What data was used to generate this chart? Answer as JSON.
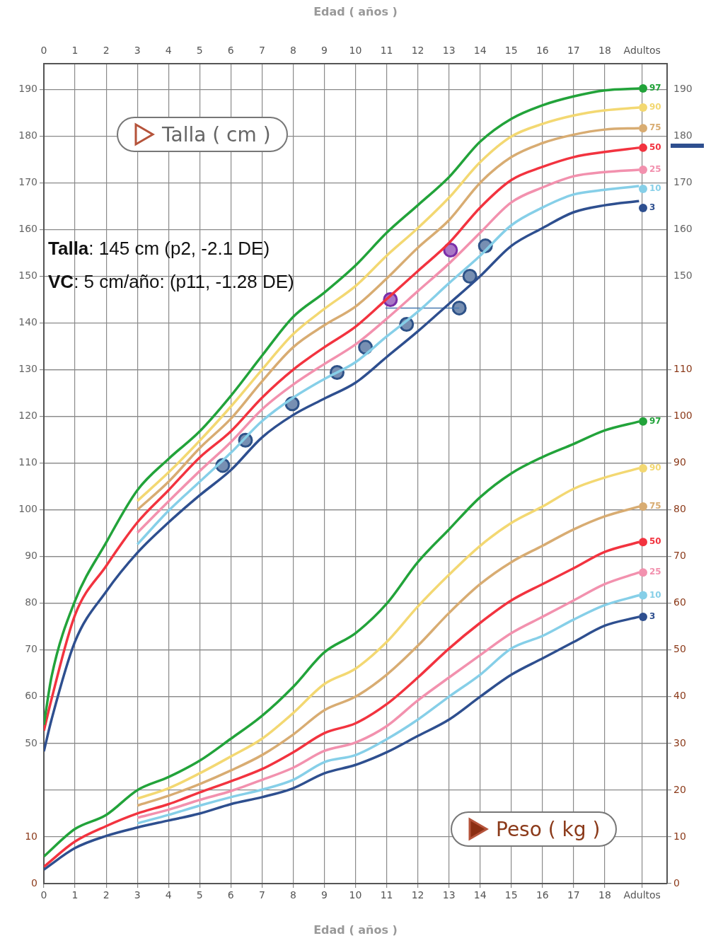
{
  "chart_data": {
    "type": "line",
    "xlabel": "Edad ( años )",
    "x2label": "Edad ( años )",
    "ylabel": "Talla ( cm )",
    "y2label": "Peso ( kg )",
    "annotations": [
      "Talla: 145 cm (p2, -2.1 DE)",
      "VC: 5 cm/año: (p11, -1.28 DE)",
      "190",
      "180",
      "170",
      "160",
      "150"
    ],
    "xlim": [
      0,
      20
    ],
    "xticks": [
      0,
      1,
      2,
      3,
      4,
      5,
      6,
      7,
      8,
      9,
      10,
      11,
      12,
      13,
      14,
      15,
      16,
      17,
      18,
      {
        "value": 19.2,
        "label": "Adultos"
      }
    ],
    "x2lim": [
      0,
      20
    ],
    "x2ticks": [
      0,
      1,
      2,
      3,
      4,
      5,
      6,
      7,
      8,
      9,
      10,
      11,
      12,
      13,
      14,
      15,
      16,
      17,
      18,
      {
        "value": 19.2,
        "label": "Adultos"
      }
    ],
    "ylim": [
      20,
      195.5
    ],
    "yticks": [
      50,
      60,
      70,
      80,
      90,
      100,
      110,
      120,
      130,
      140,
      150,
      160,
      170,
      180,
      190
    ],
    "y2lim": [
      0,
      175.5
    ],
    "y2ticks": [
      0,
      10,
      20,
      30,
      40,
      50,
      60,
      70,
      80,
      90,
      100,
      110
    ],
    "y3lim": [
      0,
      175.5
    ],
    "y3ticks": [
      0,
      10
    ],
    "grid": true,
    "legend": "right",
    "marker": "none",
    "line_style": "solid",
    "series": [
      {
        "name": "97",
        "color": "#22a33a",
        "x": [
          0,
          0.25,
          1,
          2,
          3,
          4,
          5,
          6,
          7,
          8,
          9,
          10,
          11,
          12,
          13,
          14,
          15,
          16,
          17,
          18,
          19.1
        ],
        "values": [
          54,
          64.4,
          80.5,
          93,
          104.2,
          110.9,
          116.8,
          124.4,
          133,
          141.3,
          146.5,
          152.3,
          159.3,
          165.2,
          171.2,
          178.8,
          183.7,
          186.6,
          188.5,
          189.8,
          190.2
        ]
      },
      {
        "name": "90",
        "color": "#f3d872",
        "x": [
          3,
          4,
          5,
          6,
          7,
          8,
          9,
          10,
          11,
          12,
          13,
          14,
          15,
          16,
          17,
          18,
          19.1
        ],
        "values": [
          101.9,
          108,
          114.8,
          122.1,
          130,
          137.6,
          143,
          147.9,
          154.4,
          160.3,
          166.8,
          174.4,
          179.9,
          182.6,
          184.4,
          185.5,
          186.1
        ]
      },
      {
        "name": "75",
        "color": "#d8ac72",
        "x": [
          3,
          4,
          5,
          6,
          7,
          8,
          9,
          10,
          11,
          12,
          13,
          14,
          15,
          16,
          17,
          18,
          19.1
        ],
        "values": [
          100,
          106,
          113.2,
          119.5,
          127.5,
          134.8,
          139.5,
          143.5,
          149.5,
          156.1,
          162,
          170,
          175.5,
          178.5,
          180.3,
          181.4,
          181.7
        ]
      },
      {
        "name": "50",
        "color": "#f2333f",
        "x": [
          0,
          0.25,
          1,
          2,
          3,
          4,
          5,
          6,
          7,
          8,
          9,
          10,
          11,
          12,
          13,
          14,
          15,
          16,
          17,
          18,
          19.1
        ],
        "values": [
          52.7,
          59.6,
          77.5,
          88,
          97.3,
          104.2,
          111.2,
          116.8,
          124,
          130,
          134.8,
          139.2,
          145.1,
          151.1,
          157.1,
          164.7,
          170.6,
          173.4,
          175.5,
          176.6,
          177.5
        ]
      },
      {
        "name": "25",
        "color": "#f291ae",
        "x": [
          3,
          4,
          5,
          6,
          7,
          8,
          9,
          10,
          11,
          12,
          13,
          14,
          15,
          16,
          17,
          18,
          19.1
        ],
        "values": [
          95.1,
          101.8,
          108.3,
          114.5,
          121.5,
          126.8,
          131.2,
          135.4,
          140.9,
          146.8,
          152.7,
          159.3,
          165.8,
          169,
          171.4,
          172.3,
          172.8
        ]
      },
      {
        "name": "10",
        "color": "#86cfe8",
        "x": [
          3,
          4,
          5,
          6,
          7,
          8,
          9,
          10,
          11,
          12,
          13,
          14,
          15,
          16,
          17,
          18,
          19.1
        ],
        "values": [
          92.6,
          99.8,
          106,
          112.2,
          119,
          124,
          128,
          131.6,
          137.1,
          142.4,
          148.5,
          154.4,
          160.9,
          164.7,
          167.5,
          168.5,
          169.3
        ]
      },
      {
        "name": "3",
        "color": "#2e4f8f",
        "x": [
          0,
          0.25,
          1,
          2,
          3,
          4,
          5,
          6,
          7,
          8,
          9,
          10,
          11,
          12,
          13,
          14,
          15,
          16,
          17,
          18,
          19.1
        ],
        "values": [
          48.3,
          55.2,
          71.8,
          82.5,
          90.8,
          97.3,
          103.1,
          108.5,
          115.5,
          120.3,
          123.8,
          127.2,
          132.7,
          138.2,
          144.1,
          150,
          156.5,
          160.3,
          163.7,
          165.2,
          166.1
        ]
      },
      {
        "name": "97",
        "color": "#22a33a",
        "axis": "y2",
        "x": [
          0,
          1,
          2,
          3,
          4,
          5,
          6,
          7,
          8,
          9,
          10,
          11,
          12,
          13,
          14,
          15,
          16,
          17,
          18,
          19.1
        ],
        "values": [
          5.8,
          11.7,
          14.7,
          20,
          22.8,
          26.3,
          31,
          35.9,
          42.1,
          49.5,
          53.6,
          59.9,
          68.8,
          75.8,
          82.7,
          87.8,
          91.3,
          94.1,
          97,
          98.9
        ]
      },
      {
        "name": "90",
        "color": "#f3d872",
        "axis": "y2",
        "x": [
          3,
          4,
          5,
          6,
          7,
          8,
          9,
          10,
          11,
          12,
          13,
          14,
          15,
          16,
          17,
          18,
          19.1
        ],
        "values": [
          18.2,
          20.4,
          23.6,
          27.2,
          31,
          36.5,
          42.7,
          46,
          51.7,
          59.3,
          66.1,
          72.3,
          77.2,
          80.7,
          84.5,
          86.9,
          88.9
        ]
      },
      {
        "name": "75",
        "color": "#d8ac72",
        "axis": "y2",
        "x": [
          3,
          4,
          5,
          6,
          7,
          8,
          9,
          10,
          11,
          12,
          13,
          14,
          15,
          16,
          17,
          18,
          19.1
        ],
        "values": [
          16.7,
          18.8,
          21.3,
          24.2,
          27.5,
          31.9,
          37.1,
          40,
          44.7,
          50.9,
          57.9,
          64.1,
          68.8,
          72.3,
          75.8,
          78.6,
          80.7
        ]
      },
      {
        "name": "50",
        "color": "#f2333f",
        "axis": "y2",
        "x": [
          0,
          1,
          2,
          3,
          4,
          5,
          6,
          7,
          8,
          9,
          10,
          11,
          12,
          13,
          14,
          15,
          16,
          17,
          18,
          19.1
        ],
        "values": [
          3.6,
          9,
          12.3,
          15,
          17,
          19.5,
          21.9,
          24.5,
          28.1,
          32.2,
          34.3,
          38.4,
          44.1,
          50.3,
          55.8,
          60.6,
          64.1,
          67.5,
          71,
          73.1
        ]
      },
      {
        "name": "25",
        "color": "#f291ae",
        "axis": "y2",
        "x": [
          3,
          4,
          5,
          6,
          7,
          8,
          9,
          10,
          11,
          12,
          13,
          14,
          15,
          16,
          17,
          18,
          19.1
        ],
        "values": [
          14.1,
          15.8,
          17.9,
          19.8,
          22.2,
          24.8,
          28.4,
          30.2,
          33.7,
          39.2,
          44.1,
          48.9,
          53.6,
          57.1,
          60.6,
          64.1,
          66.6
        ]
      },
      {
        "name": "10",
        "color": "#86cfe8",
        "axis": "y2",
        "x": [
          3,
          4,
          5,
          6,
          7,
          8,
          9,
          10,
          11,
          12,
          13,
          14,
          15,
          16,
          17,
          18,
          19.1
        ],
        "values": [
          12.9,
          14.7,
          16.7,
          18.5,
          20.1,
          22.2,
          26,
          27.5,
          30.9,
          35.1,
          40,
          44.7,
          50.3,
          53,
          56.5,
          59.6,
          61.7
        ]
      },
      {
        "name": "3",
        "color": "#2e4f8f",
        "axis": "y2",
        "x": [
          0,
          1,
          2,
          3,
          4,
          5,
          6,
          7,
          8,
          9,
          10,
          11,
          12,
          13,
          14,
          15,
          16,
          17,
          18,
          19.1
        ],
        "values": [
          3,
          7.6,
          10.2,
          12,
          13.5,
          15,
          17,
          18.5,
          20.4,
          23.6,
          25.4,
          28.1,
          31.6,
          35.1,
          40,
          44.7,
          48.2,
          51.7,
          55.2,
          57.1
        ]
      },
      {
        "type": "line",
        "color": "#4a7ab0",
        "x": [
          10.96,
          13.33
        ],
        "values": [
          143.2,
          143.2
        ]
      },
      {
        "type": "scatter",
        "marker": "circle",
        "color": "#2e5288",
        "x": [
          5.74,
          6.47,
          7.97,
          9.41,
          10.32,
          11.64,
          13.33,
          13.67,
          14.17
        ],
        "values": [
          109.5,
          114.9,
          122.7,
          129.4,
          134.8,
          139.7,
          143.2,
          150,
          156.5
        ]
      },
      {
        "type": "scatter",
        "marker": "circle",
        "color": "#7a2ea8",
        "x": [
          11.12,
          13.05
        ],
        "values": [
          145,
          155.6
        ]
      }
    ]
  }
}
